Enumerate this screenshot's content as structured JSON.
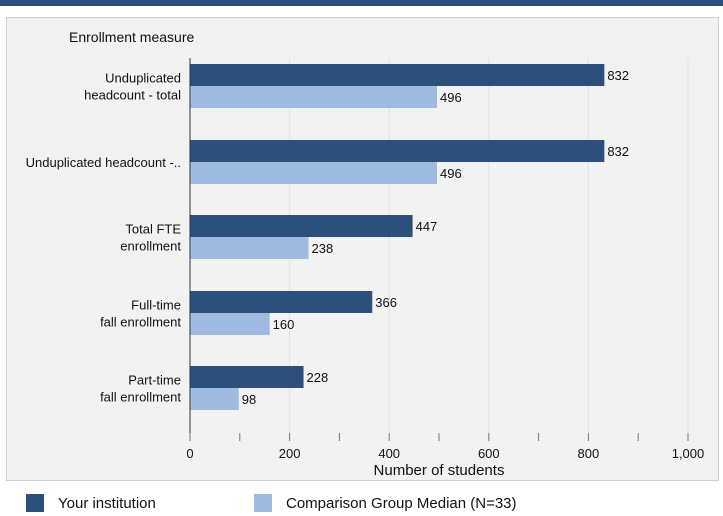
{
  "chart_data": {
    "type": "bar",
    "orientation": "horizontal",
    "y_axis_title": "Enrollment measure",
    "xlabel": "Number of students",
    "xlim": [
      0,
      1000
    ],
    "x_ticks": [
      0,
      200,
      400,
      600,
      800,
      1000
    ],
    "x_tick_labels": [
      "0",
      "200",
      "400",
      "600",
      "800",
      "1,000"
    ],
    "categories": [
      [
        "Unduplicated",
        "headcount - total"
      ],
      [
        "Unduplicated headcount -.."
      ],
      [
        "Total FTE",
        "enrollment"
      ],
      [
        "Full-time",
        "fall enrollment"
      ],
      [
        "Part-time",
        "fall enrollment"
      ]
    ],
    "series": [
      {
        "name": "Your institution",
        "color": "#2c4f7c",
        "values": [
          832,
          832,
          447,
          366,
          228
        ]
      },
      {
        "name": "Comparison Group Median (N=33)",
        "color": "#9fbbe0",
        "values": [
          496,
          496,
          238,
          160,
          98
        ]
      }
    ],
    "legend_position": "bottom"
  }
}
